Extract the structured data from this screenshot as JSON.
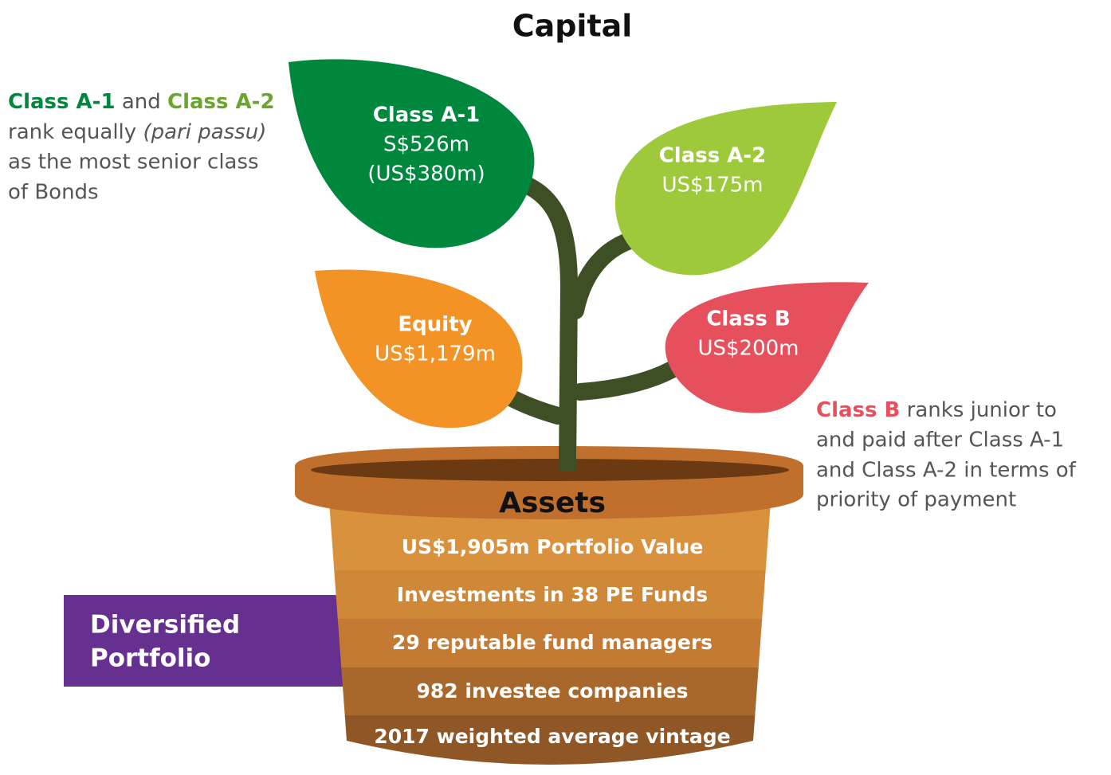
{
  "title": "Capital",
  "leaves": [
    {
      "name": "Class A-1",
      "lines": [
        "S$526m",
        "(US$380m)"
      ]
    },
    {
      "name": "Class A-2",
      "lines": [
        "US$175m"
      ]
    },
    {
      "name": "Equity",
      "lines": [
        "US$1,179m"
      ]
    },
    {
      "name": "Class B",
      "lines": [
        "US$200m"
      ]
    }
  ],
  "note_left": {
    "class_1": "Class A-1",
    "joiner": "and",
    "class_2": "Class A-2",
    "line_2": "rank equally",
    "line_2_italic": "(pari passu)",
    "line_3": "as the most senior class",
    "line_4": "of Bonds"
  },
  "note_right": {
    "class": "Class B",
    "line_1": "ranks junior to",
    "line_2": "and paid after Class A-1",
    "line_3": "and Class A-2 in terms of",
    "line_4": "priority of payment"
  },
  "pot": {
    "title": "Assets",
    "rows": [
      "US$1,905m Portfolio Value",
      "Investments in 38 PE Funds",
      "29 reputable fund managers",
      "982 investee companies",
      "2017 weighted average vintage"
    ]
  },
  "side_label": {
    "lines": [
      "Diversified",
      "Portfolio"
    ]
  }
}
